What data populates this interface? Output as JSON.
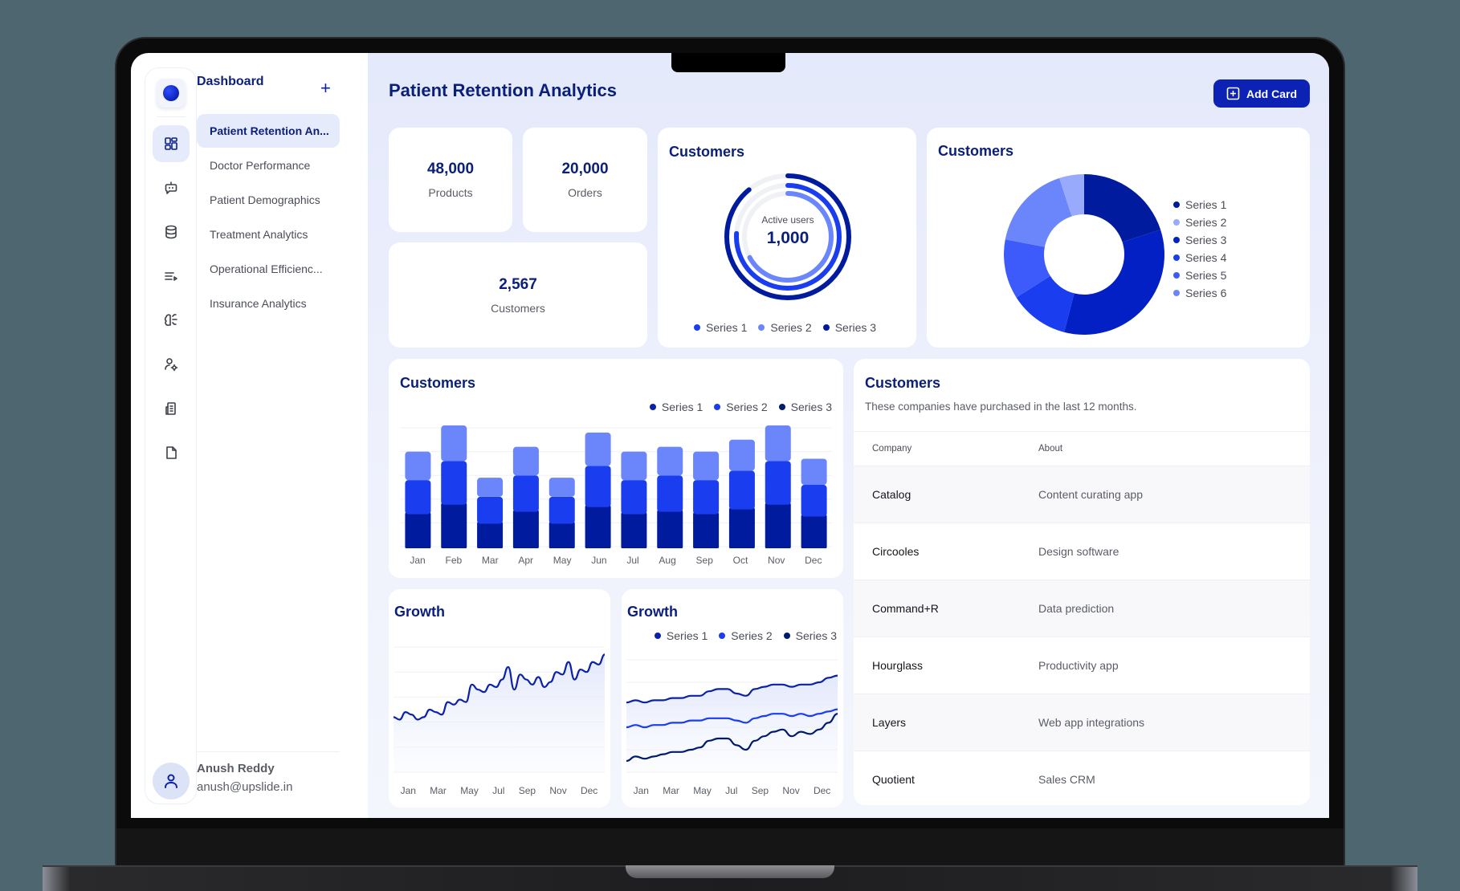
{
  "sidebar": {
    "rail_icons": [
      "dashboard-icon",
      "bot-icon",
      "database-icon",
      "playlist-icon",
      "brain-icon",
      "user-settings-icon",
      "building-icon",
      "file-icon"
    ],
    "active_icon": "dashboard-icon"
  },
  "nav": {
    "title": "Dashboard",
    "add_label": "+",
    "items": [
      {
        "label": "Patient Retention An...",
        "active": true
      },
      {
        "label": "Doctor Performance",
        "active": false
      },
      {
        "label": "Patient Demographics",
        "active": false
      },
      {
        "label": "Treatment Analytics",
        "active": false
      },
      {
        "label": "Operational Efficienc...",
        "active": false
      },
      {
        "label": "Insurance Analytics",
        "active": false
      }
    ],
    "user": {
      "name": "Anush Reddy",
      "email": "anush@upslide.in"
    }
  },
  "header": {
    "title": "Patient Retention Analytics",
    "add_card_label": "Add Card"
  },
  "kpis": {
    "products": {
      "value": "48,000",
      "label": "Products"
    },
    "orders": {
      "value": "20,000",
      "label": "Orders"
    },
    "customers": {
      "value": "2,567",
      "label": "Customers"
    }
  },
  "radial": {
    "title": "Customers",
    "center_label": "Active users",
    "center_value": "1,000",
    "legend": [
      "Series 1",
      "Series 2",
      "Series 3"
    ]
  },
  "pie": {
    "title": "Customers",
    "legend": [
      "Series 1",
      "Series 2",
      "Series 3",
      "Series 4",
      "Series 5",
      "Series 6"
    ]
  },
  "bar": {
    "title": "Customers",
    "legend": [
      "Series 1",
      "Series 2",
      "Series 3"
    ]
  },
  "table": {
    "title": "Customers",
    "subtitle": "These companies have purchased in the last 12 months.",
    "columns": [
      "Company",
      "About"
    ],
    "rows": [
      [
        "Catalog",
        "Content curating app"
      ],
      [
        "Circooles",
        "Design software"
      ],
      [
        "Command+R",
        "Data prediction"
      ],
      [
        "Hourglass",
        "Productivity app"
      ],
      [
        "Layers",
        "Web app integrations"
      ],
      [
        "Quotient",
        "Sales CRM"
      ]
    ]
  },
  "growth1": {
    "title": "Growth",
    "x_labels": [
      "Jan",
      "Mar",
      "May",
      "Jul",
      "Sep",
      "Nov",
      "Dec"
    ]
  },
  "growth2": {
    "title": "Growth",
    "legend": [
      "Series 1",
      "Series 2",
      "Series 3"
    ],
    "x_labels": [
      "Jan",
      "Mar",
      "May",
      "Jul",
      "Sep",
      "Nov",
      "Dec"
    ]
  },
  "colors": {
    "brand": "#0b22b5",
    "title": "#0a1f7a",
    "navy": "#001b9e",
    "blue": "#1a3df0",
    "light_blue": "#6a86fa",
    "pale_blue": "#98aafc"
  },
  "chart_data": [
    {
      "type": "radial-bar",
      "title": "Customers",
      "center": {
        "label": "Active users",
        "value": 1000
      },
      "series": [
        {
          "name": "Series 1",
          "value": 76,
          "color": "#1a3df0"
        },
        {
          "name": "Series 2",
          "value": 67,
          "color": "#6a86fa"
        },
        {
          "name": "Series 3",
          "value": 89,
          "color": "#001b9e"
        }
      ],
      "unit": "percent"
    },
    {
      "type": "pie",
      "donut": true,
      "title": "Customers",
      "categories": [
        "Series 1",
        "Series 2",
        "Series 3",
        "Series 4",
        "Series 5",
        "Series 6"
      ],
      "values": [
        20,
        5,
        34,
        12,
        12,
        17
      ],
      "colors": [
        "#001b9e",
        "#98aafc",
        "#0320c4",
        "#1a3df0",
        "#3d5bfa",
        "#6a86fa"
      ],
      "order_clockwise_from_top": [
        "Series 1",
        "Series 3",
        "Series 4",
        "Series 5",
        "Series 6",
        "Series 2"
      ],
      "legend_position": "right"
    },
    {
      "type": "bar",
      "stacked": true,
      "title": "Customers",
      "categories": [
        "Jan",
        "Feb",
        "Mar",
        "Apr",
        "May",
        "Jun",
        "Jul",
        "Aug",
        "Sep",
        "Oct",
        "Nov",
        "Dec"
      ],
      "series": [
        {
          "name": "Series 1",
          "values": [
            12,
            15,
            8,
            12,
            8,
            14,
            12,
            12,
            12,
            13,
            15,
            11
          ],
          "color": "#6a86fa"
        },
        {
          "name": "Series 2",
          "values": [
            13,
            17,
            10,
            14,
            10,
            16,
            13,
            14,
            13,
            15,
            17,
            12
          ],
          "color": "#1a3df0"
        },
        {
          "name": "Series 3",
          "values": [
            15,
            19,
            11,
            16,
            11,
            18,
            15,
            16,
            15,
            17,
            19,
            14
          ],
          "color": "#001b9e"
        }
      ],
      "ylim": [
        0,
        50
      ],
      "grid": true,
      "legend_position": "top-right"
    },
    {
      "type": "area",
      "title": "Growth",
      "x_labels": [
        "Jan",
        "Mar",
        "May",
        "Jul",
        "Sep",
        "Nov",
        "Dec"
      ],
      "series": [
        {
          "name": "Growth",
          "values": [
            22,
            21,
            24,
            23,
            21,
            22,
            25,
            24,
            23,
            28,
            27,
            29,
            28,
            35,
            33,
            32,
            35,
            34,
            37,
            42,
            33,
            39,
            37,
            35,
            38,
            34,
            36,
            40,
            39,
            44,
            37,
            41,
            40,
            44,
            43,
            47
          ],
          "color": "#0b22a8"
        }
      ],
      "ylim": [
        0,
        50
      ],
      "grid": true
    },
    {
      "type": "area",
      "title": "Growth",
      "x_labels": [
        "Jan",
        "Mar",
        "May",
        "Jul",
        "Sep",
        "Nov",
        "Dec"
      ],
      "series": [
        {
          "name": "Series 1",
          "values": [
            31,
            32,
            31,
            32,
            32,
            33,
            33,
            34,
            34,
            36,
            37,
            37,
            35,
            34,
            37,
            38,
            39,
            39,
            38,
            39,
            39,
            40,
            42,
            43
          ],
          "color": "#0b22a8"
        },
        {
          "name": "Series 2",
          "values": [
            20,
            21,
            20,
            21,
            21,
            22,
            22,
            23,
            23,
            24,
            24,
            24,
            23,
            22,
            24,
            25,
            26,
            26,
            25,
            26,
            25,
            26,
            27,
            28
          ],
          "color": "#1a3df0"
        },
        {
          "name": "Series 3",
          "values": [
            5,
            7,
            6,
            7,
            8,
            9,
            9,
            10,
            11,
            14,
            15,
            15,
            12,
            10,
            14,
            16,
            18,
            19,
            16,
            18,
            17,
            19,
            22,
            26
          ],
          "color": "#001b6e"
        }
      ],
      "ylim": [
        0,
        50
      ],
      "grid": true,
      "legend_position": "top-right"
    }
  ]
}
